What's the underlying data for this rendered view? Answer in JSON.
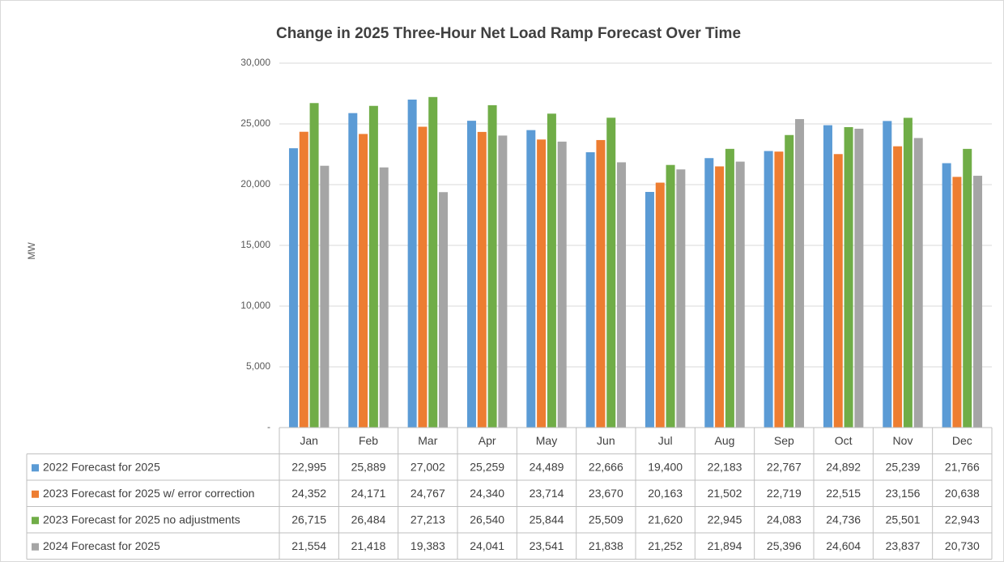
{
  "chart_data": {
    "type": "bar",
    "title": "Change in 2025 Three-Hour Net Load Ramp Forecast Over Time",
    "y_label": "MW",
    "categories": [
      "Jan",
      "Feb",
      "Mar",
      "Apr",
      "May",
      "Jun",
      "Jul",
      "Aug",
      "Sep",
      "Oct",
      "Nov",
      "Dec"
    ],
    "series": [
      {
        "name": "2022 Forecast for 2025",
        "color": "#5b9bd5",
        "values": [
          22995,
          25889,
          27002,
          25259,
          24489,
          22666,
          19400,
          22183,
          22767,
          24892,
          25239,
          21766
        ],
        "value_labels": [
          "22,995",
          "25,889",
          "27,002",
          "25,259",
          "24,489",
          "22,666",
          "19,400",
          "22,183",
          "22,767",
          "24,892",
          "25,239",
          "21,766"
        ]
      },
      {
        "name": "2023 Forecast for 2025 w/ error correction",
        "color": "#ed7d31",
        "values": [
          24352,
          24171,
          24767,
          24340,
          23714,
          23670,
          20163,
          21502,
          22719,
          22515,
          23156,
          20638
        ],
        "value_labels": [
          "24,352",
          "24,171",
          "24,767",
          "24,340",
          "23,714",
          "23,670",
          "20,163",
          "21,502",
          "22,719",
          "22,515",
          "23,156",
          "20,638"
        ]
      },
      {
        "name": "2023 Forecast for 2025 no adjustments",
        "color": "#70ad47",
        "values": [
          26715,
          26484,
          27213,
          26540,
          25844,
          25509,
          21620,
          22945,
          24083,
          24736,
          25501,
          22943
        ],
        "value_labels": [
          "26,715",
          "26,484",
          "27,213",
          "26,540",
          "25,844",
          "25,509",
          "21,620",
          "22,945",
          "24,083",
          "24,736",
          "25,501",
          "22,943"
        ]
      },
      {
        "name": "2024 Forecast for 2025",
        "color": "#a5a5a5",
        "values": [
          21554,
          21418,
          19383,
          24041,
          23541,
          21838,
          21252,
          21894,
          25396,
          24604,
          23837,
          20730
        ],
        "value_labels": [
          "21,554",
          "21,418",
          "19,383",
          "24,041",
          "23,541",
          "21,838",
          "21,252",
          "21,894",
          "25,396",
          "24,604",
          "23,837",
          "20,730"
        ]
      }
    ],
    "ylim": [
      0,
      30000
    ],
    "yticks": [
      {
        "value": 0,
        "label": "-"
      },
      {
        "value": 5000,
        "label": "5,000"
      },
      {
        "value": 10000,
        "label": "10,000"
      },
      {
        "value": 15000,
        "label": "15,000"
      },
      {
        "value": 20000,
        "label": "20,000"
      },
      {
        "value": 25000,
        "label": "25,000"
      },
      {
        "value": 30000,
        "label": "30,000"
      }
    ],
    "grid": true
  }
}
